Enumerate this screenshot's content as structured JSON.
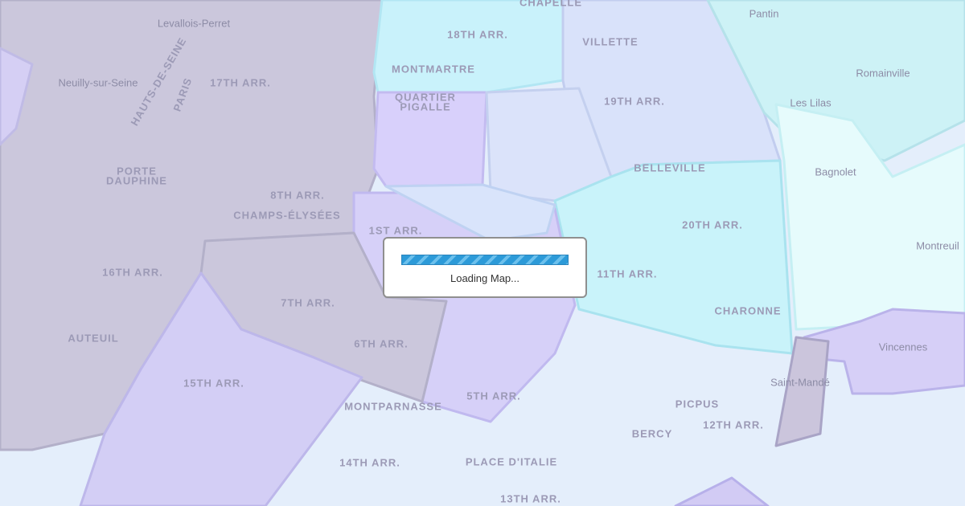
{
  "map": {
    "labels": [
      "CHAPELLE",
      "Levallois-Perret",
      "18TH ARR.",
      "Pantin",
      "MONTMARTRE",
      "VILLETTE",
      "Romainville",
      "Neuilly-sur-Seine",
      "17TH ARR.",
      "QUARTIER",
      "PIGALLE",
      "19TH ARR.",
      "Les Lilas",
      "PORTE",
      "DAUPHINE",
      "BELLEVILLE",
      "Bagnolet",
      "8TH ARR.",
      "CHAMPS-ÉLYSÉES",
      "20TH ARR.",
      "1ST ARR.",
      "Montreuil",
      "16TH ARR.",
      "7TH ARR.",
      "11TH ARR.",
      "CHARONNE",
      "AUTEUIL",
      "6TH ARR.",
      "Vincennes",
      "15TH ARR.",
      "5TH ARR.",
      "Saint-Mandé",
      "PICPUS",
      "12TH ARR.",
      "BERCY",
      "MONTPARNASSE",
      "14TH ARR.",
      "PLACE D'ITALIE",
      "13TH ARR.",
      "PARIS",
      "HAUTS-DE-SEINE"
    ]
  },
  "loading": {
    "text": "Loading Map..."
  }
}
